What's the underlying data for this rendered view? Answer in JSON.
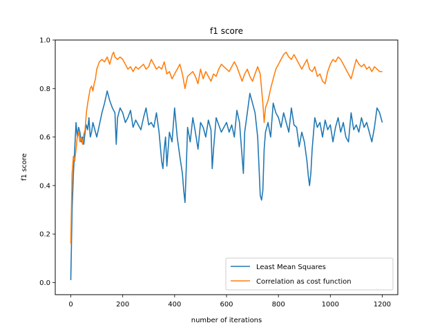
{
  "chart_data": {
    "type": "line",
    "title": "f1 score",
    "xlabel": "number of iterations",
    "ylabel": "f1 score",
    "xlim": [
      -60,
      1260
    ],
    "ylim": [
      -0.05,
      1.0
    ],
    "xticks": [
      0,
      200,
      400,
      600,
      800,
      1000,
      1200
    ],
    "yticks": [
      0.0,
      0.2,
      0.4,
      0.6,
      0.8,
      1.0
    ],
    "xtick_labels": [
      "0",
      "200",
      "400",
      "600",
      "800",
      "1000",
      "1200"
    ],
    "ytick_labels": [
      "0.0",
      "0.2",
      "0.4",
      "0.6",
      "0.8",
      "1.0"
    ],
    "grid": false,
    "legend_position": "lower-right",
    "series": [
      {
        "name": "Least Mean Squares",
        "color": "#1f77b4",
        "x": [
          0,
          5,
          10,
          15,
          20,
          25,
          30,
          35,
          40,
          45,
          50,
          55,
          60,
          65,
          70,
          75,
          80,
          85,
          90,
          95,
          100,
          110,
          120,
          130,
          140,
          150,
          160,
          170,
          175,
          180,
          190,
          200,
          210,
          220,
          230,
          240,
          250,
          260,
          270,
          280,
          290,
          300,
          310,
          320,
          330,
          340,
          350,
          355,
          360,
          365,
          370,
          380,
          390,
          400,
          410,
          420,
          430,
          435,
          440,
          445,
          450,
          460,
          470,
          480,
          490,
          500,
          510,
          520,
          530,
          540,
          545,
          550,
          560,
          570,
          580,
          590,
          600,
          610,
          620,
          630,
          640,
          650,
          660,
          665,
          670,
          680,
          690,
          700,
          710,
          720,
          725,
          730,
          735,
          740,
          745,
          750,
          760,
          770,
          780,
          790,
          800,
          810,
          820,
          830,
          840,
          850,
          860,
          870,
          880,
          890,
          900,
          910,
          915,
          920,
          925,
          930,
          940,
          950,
          960,
          970,
          980,
          990,
          1000,
          1010,
          1020,
          1030,
          1040,
          1050,
          1060,
          1070,
          1080,
          1090,
          1100,
          1110,
          1120,
          1130,
          1140,
          1150,
          1160,
          1170,
          1180,
          1190,
          1200
        ],
        "values": [
          0.01,
          0.3,
          0.45,
          0.55,
          0.66,
          0.6,
          0.64,
          0.62,
          0.58,
          0.6,
          0.57,
          0.62,
          0.65,
          0.63,
          0.68,
          0.6,
          0.62,
          0.66,
          0.64,
          0.62,
          0.6,
          0.65,
          0.7,
          0.74,
          0.79,
          0.75,
          0.72,
          0.7,
          0.57,
          0.68,
          0.72,
          0.7,
          0.66,
          0.68,
          0.71,
          0.64,
          0.67,
          0.65,
          0.63,
          0.68,
          0.72,
          0.65,
          0.66,
          0.64,
          0.7,
          0.62,
          0.5,
          0.47,
          0.55,
          0.6,
          0.48,
          0.62,
          0.58,
          0.72,
          0.6,
          0.52,
          0.45,
          0.38,
          0.33,
          0.48,
          0.64,
          0.58,
          0.68,
          0.62,
          0.55,
          0.66,
          0.64,
          0.6,
          0.67,
          0.63,
          0.47,
          0.55,
          0.68,
          0.65,
          0.62,
          0.64,
          0.66,
          0.62,
          0.65,
          0.6,
          0.71,
          0.66,
          0.52,
          0.45,
          0.62,
          0.7,
          0.78,
          0.74,
          0.7,
          0.6,
          0.48,
          0.36,
          0.34,
          0.38,
          0.55,
          0.62,
          0.66,
          0.6,
          0.74,
          0.7,
          0.68,
          0.64,
          0.7,
          0.66,
          0.62,
          0.72,
          0.65,
          0.64,
          0.56,
          0.62,
          0.58,
          0.5,
          0.44,
          0.4,
          0.45,
          0.55,
          0.68,
          0.64,
          0.66,
          0.6,
          0.67,
          0.63,
          0.65,
          0.58,
          0.64,
          0.68,
          0.62,
          0.66,
          0.6,
          0.58,
          0.7,
          0.63,
          0.65,
          0.62,
          0.68,
          0.64,
          0.66,
          0.62,
          0.58,
          0.64,
          0.72,
          0.7,
          0.66
        ]
      },
      {
        "name": "Correlation as cost function",
        "color": "#ff7f0e",
        "x": [
          0,
          5,
          10,
          15,
          20,
          25,
          30,
          35,
          40,
          45,
          50,
          55,
          60,
          65,
          70,
          75,
          80,
          85,
          90,
          95,
          100,
          110,
          120,
          130,
          140,
          150,
          160,
          165,
          170,
          180,
          190,
          200,
          210,
          220,
          230,
          240,
          250,
          260,
          270,
          280,
          290,
          300,
          310,
          320,
          330,
          340,
          350,
          360,
          370,
          380,
          390,
          400,
          410,
          420,
          430,
          440,
          450,
          460,
          470,
          480,
          490,
          500,
          510,
          520,
          530,
          540,
          550,
          560,
          570,
          580,
          590,
          600,
          610,
          620,
          630,
          640,
          650,
          660,
          670,
          680,
          690,
          700,
          710,
          720,
          730,
          735,
          740,
          745,
          750,
          760,
          770,
          780,
          790,
          800,
          810,
          820,
          830,
          840,
          850,
          860,
          870,
          880,
          890,
          900,
          910,
          920,
          930,
          940,
          950,
          960,
          970,
          980,
          990,
          1000,
          1010,
          1020,
          1030,
          1040,
          1050,
          1060,
          1070,
          1080,
          1090,
          1100,
          1110,
          1120,
          1130,
          1140,
          1150,
          1160,
          1170,
          1180,
          1190,
          1200
        ],
        "values": [
          0.16,
          0.45,
          0.52,
          0.5,
          0.55,
          0.6,
          0.62,
          0.58,
          0.6,
          0.57,
          0.61,
          0.63,
          0.7,
          0.74,
          0.77,
          0.8,
          0.81,
          0.79,
          0.82,
          0.84,
          0.88,
          0.91,
          0.92,
          0.91,
          0.93,
          0.9,
          0.94,
          0.95,
          0.93,
          0.92,
          0.93,
          0.92,
          0.9,
          0.88,
          0.89,
          0.87,
          0.89,
          0.88,
          0.89,
          0.9,
          0.88,
          0.89,
          0.92,
          0.9,
          0.88,
          0.89,
          0.88,
          0.91,
          0.86,
          0.87,
          0.84,
          0.86,
          0.88,
          0.9,
          0.86,
          0.8,
          0.85,
          0.86,
          0.87,
          0.85,
          0.82,
          0.88,
          0.84,
          0.87,
          0.85,
          0.83,
          0.86,
          0.85,
          0.88,
          0.9,
          0.89,
          0.88,
          0.87,
          0.89,
          0.91,
          0.89,
          0.86,
          0.83,
          0.86,
          0.88,
          0.85,
          0.83,
          0.86,
          0.89,
          0.86,
          0.8,
          0.74,
          0.66,
          0.72,
          0.75,
          0.8,
          0.84,
          0.88,
          0.9,
          0.92,
          0.94,
          0.95,
          0.93,
          0.92,
          0.94,
          0.92,
          0.9,
          0.88,
          0.9,
          0.92,
          0.88,
          0.87,
          0.89,
          0.85,
          0.86,
          0.83,
          0.82,
          0.87,
          0.9,
          0.92,
          0.91,
          0.93,
          0.92,
          0.9,
          0.88,
          0.86,
          0.84,
          0.88,
          0.92,
          0.9,
          0.89,
          0.9,
          0.88,
          0.89,
          0.87,
          0.89,
          0.88,
          0.87,
          0.87
        ]
      }
    ]
  }
}
